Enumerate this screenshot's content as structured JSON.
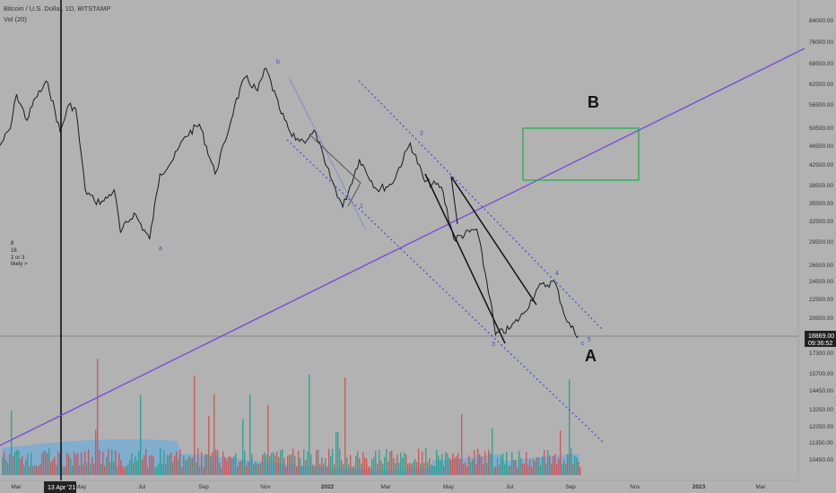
{
  "header": {
    "symbol_line": "Bitcoin / U.S. Dollar, 1D, BITSTAMP",
    "volume_line": "Vol (20)"
  },
  "left_note": [
    "8",
    "16",
    "2 or 3",
    "likely >"
  ],
  "big_labels": {
    "A": "A",
    "B": "B"
  },
  "wave_labels": {
    "a": "a",
    "b": "b",
    "one": "1",
    "two": "2",
    "three": "3",
    "four": "4",
    "five": "5",
    "c": "c"
  },
  "price_tag": {
    "value": "18869.00",
    "countdown": "09:36:52"
  },
  "cursor_date": "13 Apr '21",
  "colors": {
    "background": "#b2b2b2",
    "price_line": "#1a1a1a",
    "trend_line": "#7b4fd6",
    "channel": "#4a4ad0",
    "target_box": "#21a84a",
    "volume_up": "#2a9d8f",
    "volume_down": "#d05050",
    "volume_ma": "#5aa9e6"
  },
  "chart_data": {
    "type": "line",
    "scale": "log",
    "y_ticks": [
      "84000.00",
      "76000.00",
      "68500.00",
      "62500.00",
      "56500.00",
      "50500.00",
      "46500.00",
      "42500.00",
      "38500.00",
      "35500.00",
      "32500.00",
      "29500.00",
      "26500.00",
      "24500.00",
      "22500.00",
      "20500.00",
      "17300.00",
      "15700.00",
      "14450.00",
      "13250.00",
      "12250.00",
      "11350.00",
      "10450.00"
    ],
    "x_ticks": [
      "Mar",
      "May",
      "Jul",
      "Sep",
      "Nov",
      "2022",
      "Mar",
      "May",
      "Jul",
      "Sep",
      "Nov",
      "2023",
      "Mar"
    ],
    "price_series": [
      {
        "date": "2021-02-26",
        "close": 47000
      },
      {
        "date": "2021-03-08",
        "close": 51000
      },
      {
        "date": "2021-03-14",
        "close": 60000
      },
      {
        "date": "2021-03-24",
        "close": 53000
      },
      {
        "date": "2021-04-01",
        "close": 59000
      },
      {
        "date": "2021-04-13",
        "close": 63500
      },
      {
        "date": "2021-04-25",
        "close": 50000
      },
      {
        "date": "2021-05-03",
        "close": 57000
      },
      {
        "date": "2021-05-10",
        "close": 56000
      },
      {
        "date": "2021-05-19",
        "close": 38000
      },
      {
        "date": "2021-05-28",
        "close": 36000
      },
      {
        "date": "2021-06-06",
        "close": 36000
      },
      {
        "date": "2021-06-16",
        "close": 38000
      },
      {
        "date": "2021-06-22",
        "close": 31000
      },
      {
        "date": "2021-07-05",
        "close": 34000
      },
      {
        "date": "2021-07-20",
        "close": 30000
      },
      {
        "date": "2021-07-30",
        "close": 41000
      },
      {
        "date": "2021-08-12",
        "close": 44000
      },
      {
        "date": "2021-08-23",
        "close": 49000
      },
      {
        "date": "2021-09-06",
        "close": 52000
      },
      {
        "date": "2021-09-21",
        "close": 41000
      },
      {
        "date": "2021-10-01",
        "close": 48000
      },
      {
        "date": "2021-10-10",
        "close": 57000
      },
      {
        "date": "2021-10-20",
        "close": 65000
      },
      {
        "date": "2021-11-01",
        "close": 61000
      },
      {
        "date": "2021-11-09",
        "close": 68000
      },
      {
        "date": "2021-11-22",
        "close": 56000
      },
      {
        "date": "2021-12-04",
        "close": 49000
      },
      {
        "date": "2021-12-15",
        "close": 48000
      },
      {
        "date": "2021-12-27",
        "close": 50000
      },
      {
        "date": "2022-01-05",
        "close": 43000
      },
      {
        "date": "2022-01-22",
        "close": 35000
      },
      {
        "date": "2022-02-07",
        "close": 44000
      },
      {
        "date": "2022-02-24",
        "close": 38000
      },
      {
        "date": "2022-03-10",
        "close": 39000
      },
      {
        "date": "2022-03-28",
        "close": 47500
      },
      {
        "date": "2022-04-11",
        "close": 39500
      },
      {
        "date": "2022-04-27",
        "close": 38500
      },
      {
        "date": "2022-05-09",
        "close": 30000
      },
      {
        "date": "2022-05-31",
        "close": 31500
      },
      {
        "date": "2022-06-13",
        "close": 22500
      },
      {
        "date": "2022-06-18",
        "close": 19000
      },
      {
        "date": "2022-07-01",
        "close": 19500
      },
      {
        "date": "2022-07-15",
        "close": 21000
      },
      {
        "date": "2022-07-29",
        "close": 23800
      },
      {
        "date": "2022-08-14",
        "close": 24500
      },
      {
        "date": "2022-08-26",
        "close": 20200
      },
      {
        "date": "2022-09-06",
        "close": 18869
      }
    ],
    "last_price": 18869.0
  }
}
